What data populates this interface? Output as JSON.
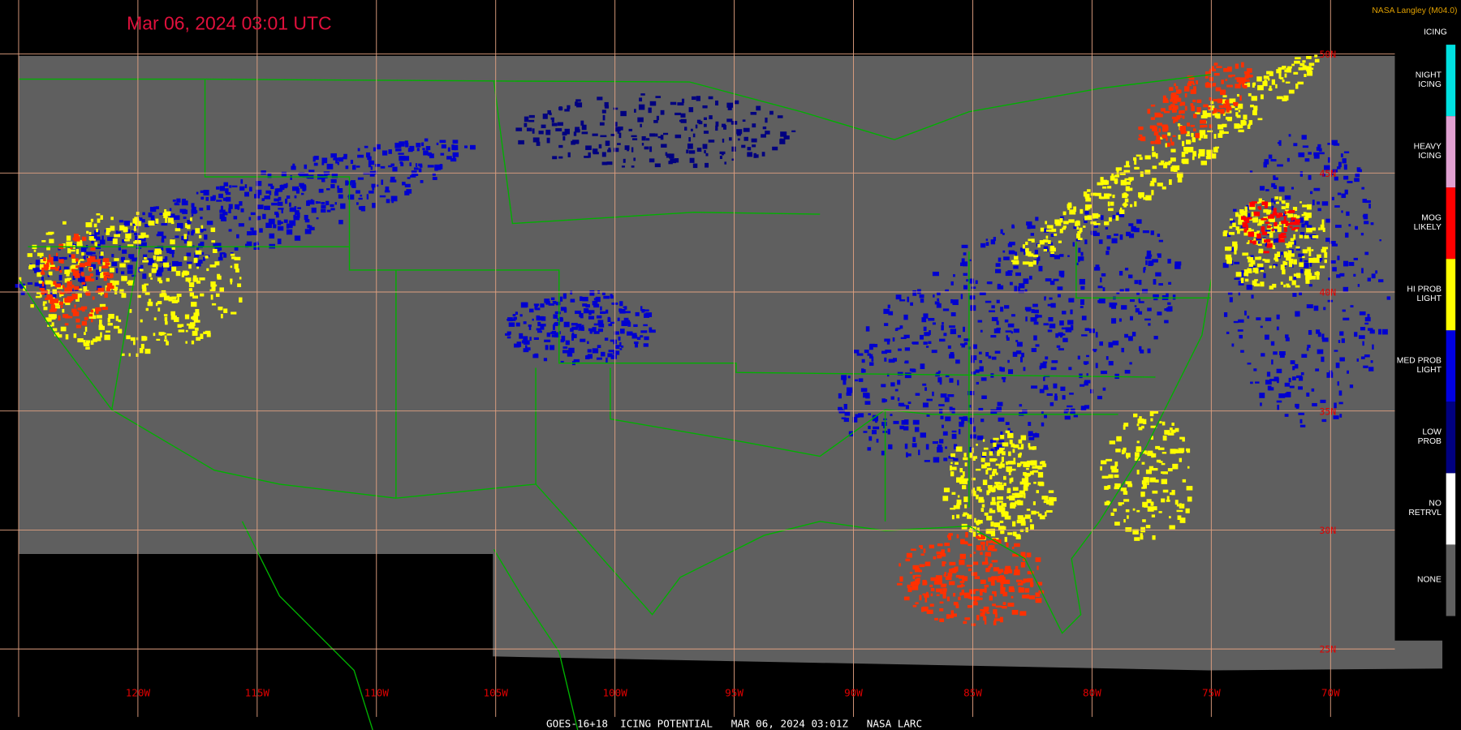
{
  "header": {
    "timestamp": "Mar 06, 2024 03:01 UTC",
    "source": "NASA Langley (M04.0)"
  },
  "legend": {
    "title": "ICING",
    "items": [
      {
        "label": [
          "NIGHT",
          "ICING"
        ],
        "color": "#00e0e0"
      },
      {
        "label": [
          "HEAVY",
          "ICING"
        ],
        "color": "#e0a0d0"
      },
      {
        "label": [
          "MOG",
          "LIKELY"
        ],
        "color": "#ff0000"
      },
      {
        "label": [
          "HI PROB",
          "LIGHT"
        ],
        "color": "#ffff00"
      },
      {
        "label": [
          "MED PROB",
          "LIGHT"
        ],
        "color": "#0000e0"
      },
      {
        "label": [
          "LOW",
          "PROB"
        ],
        "color": "#000080"
      },
      {
        "label": [
          "NO",
          "RETRVL"
        ],
        "color": "#ffffff"
      },
      {
        "label": [
          "NONE"
        ],
        "color": "#606060"
      }
    ]
  },
  "longitudes": [
    "120W",
    "115W",
    "110W",
    "105W",
    "100W",
    "95W",
    "90W",
    "85W",
    "80W",
    "75W",
    "70W"
  ],
  "latitudes": [
    "50N",
    "45N",
    "40N",
    "35N",
    "30N",
    "25N"
  ],
  "footer": "GOES-16+18  ICING POTENTIAL   MAR 06, 2024 03:01Z   NASA LARC"
}
